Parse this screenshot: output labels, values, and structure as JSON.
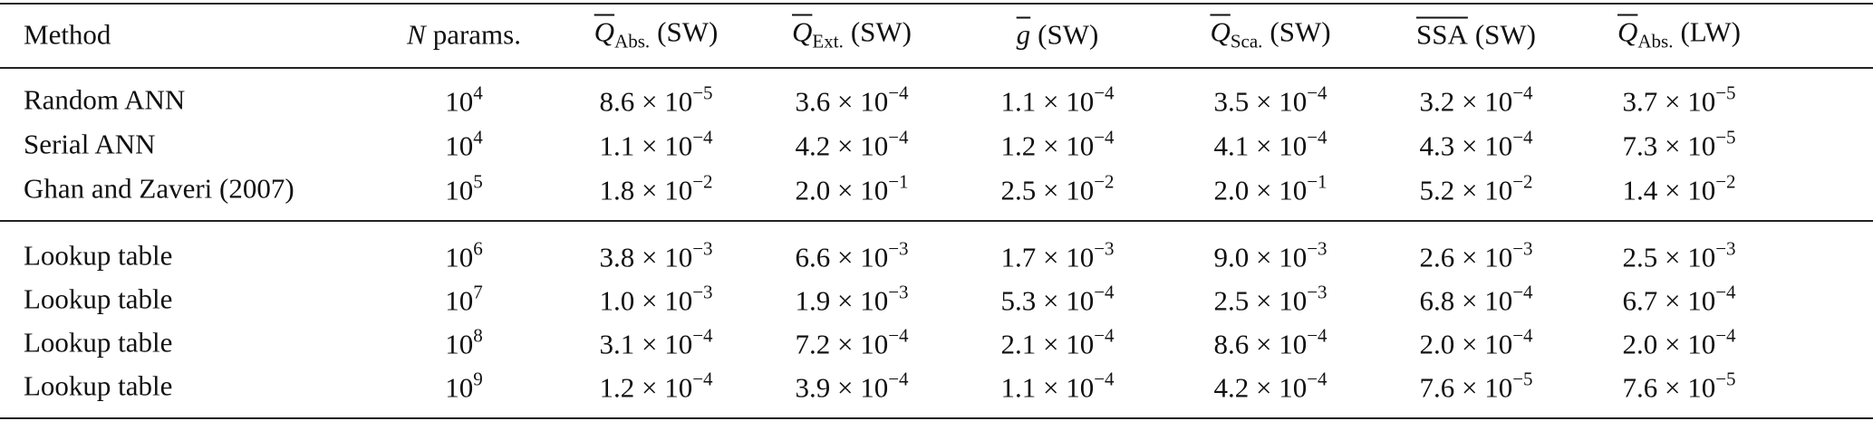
{
  "table": {
    "header": [
      {
        "text": "Method"
      },
      {
        "italic": "N",
        "text": "params."
      },
      {
        "over": "Q",
        "sub": "Abs.",
        "text": "(SW)"
      },
      {
        "over": "Q",
        "sub": "Ext.",
        "text": "(SW)"
      },
      {
        "over": "g",
        "text": "(SW)"
      },
      {
        "over": "Q",
        "sub": "Sca.",
        "text": "(SW)"
      },
      {
        "over": "SSA",
        "text": "(SW)"
      },
      {
        "over": "Q",
        "sub": "Abs.",
        "text": "(LW)"
      }
    ],
    "groups": [
      [
        [
          {
            "text": "Random ANN"
          },
          {
            "text": "10",
            "sup": "4"
          },
          {
            "text": "8.6 × 10",
            "sup": "−5"
          },
          {
            "text": "3.6 × 10",
            "sup": "−4"
          },
          {
            "text": "1.1 × 10",
            "sup": "−4"
          },
          {
            "text": "3.5 × 10",
            "sup": "−4"
          },
          {
            "text": "3.2 × 10",
            "sup": "−4"
          },
          {
            "text": "3.7 × 10",
            "sup": "−5"
          }
        ],
        [
          {
            "text": "Serial ANN"
          },
          {
            "text": "10",
            "sup": "4"
          },
          {
            "text": "1.1 × 10",
            "sup": "−4"
          },
          {
            "text": "4.2 × 10",
            "sup": "−4"
          },
          {
            "text": "1.2 × 10",
            "sup": "−4"
          },
          {
            "text": "4.1 × 10",
            "sup": "−4"
          },
          {
            "text": "4.3 × 10",
            "sup": "−4"
          },
          {
            "text": "7.3 × 10",
            "sup": "−5"
          }
        ],
        [
          {
            "text": "Ghan and Zaveri (2007)"
          },
          {
            "text": "10",
            "sup": "5"
          },
          {
            "text": "1.8 × 10",
            "sup": "−2"
          },
          {
            "text": "2.0 × 10",
            "sup": "−1"
          },
          {
            "text": "2.5 × 10",
            "sup": "−2"
          },
          {
            "text": "2.0 × 10",
            "sup": "−1"
          },
          {
            "text": "5.2 × 10",
            "sup": "−2"
          },
          {
            "text": "1.4 × 10",
            "sup": "−2"
          }
        ]
      ],
      [
        [
          {
            "text": "Lookup table"
          },
          {
            "text": "10",
            "sup": "6"
          },
          {
            "text": "3.8 × 10",
            "sup": "−3"
          },
          {
            "text": "6.6 × 10",
            "sup": "−3"
          },
          {
            "text": "1.7 × 10",
            "sup": "−3"
          },
          {
            "text": "9.0 × 10",
            "sup": "−3"
          },
          {
            "text": "2.6 × 10",
            "sup": "−3"
          },
          {
            "text": "2.5 × 10",
            "sup": "−3"
          }
        ],
        [
          {
            "text": "Lookup table"
          },
          {
            "text": "10",
            "sup": "7"
          },
          {
            "text": "1.0 × 10",
            "sup": "−3"
          },
          {
            "text": "1.9 × 10",
            "sup": "−3"
          },
          {
            "text": "5.3 × 10",
            "sup": "−4"
          },
          {
            "text": "2.5 × 10",
            "sup": "−3"
          },
          {
            "text": "6.8 × 10",
            "sup": "−4"
          },
          {
            "text": "6.7 × 10",
            "sup": "−4"
          }
        ],
        [
          {
            "text": "Lookup table"
          },
          {
            "text": "10",
            "sup": "8"
          },
          {
            "text": "3.1 × 10",
            "sup": "−4"
          },
          {
            "text": "7.2 × 10",
            "sup": "−4"
          },
          {
            "text": "2.1 × 10",
            "sup": "−4"
          },
          {
            "text": "8.6 × 10",
            "sup": "−4"
          },
          {
            "text": "2.0 × 10",
            "sup": "−4"
          },
          {
            "text": "2.0 × 10",
            "sup": "−4"
          }
        ],
        [
          {
            "text": "Lookup table"
          },
          {
            "text": "10",
            "sup": "9"
          },
          {
            "text": "1.2 × 10",
            "sup": "−4"
          },
          {
            "text": "3.9 × 10",
            "sup": "−4"
          },
          {
            "text": "1.1 × 10",
            "sup": "−4"
          },
          {
            "text": "4.2 × 10",
            "sup": "−4"
          },
          {
            "text": "7.6 × 10",
            "sup": "−5"
          },
          {
            "text": "7.6 × 10",
            "sup": "−5"
          }
        ]
      ]
    ]
  }
}
